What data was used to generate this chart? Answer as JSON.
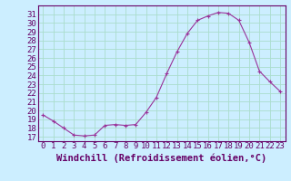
{
  "x": [
    0,
    1,
    2,
    3,
    4,
    5,
    6,
    7,
    8,
    9,
    10,
    11,
    12,
    13,
    14,
    15,
    16,
    17,
    18,
    19,
    20,
    21,
    22,
    23
  ],
  "y": [
    19.5,
    18.8,
    18.0,
    17.2,
    17.1,
    17.2,
    18.3,
    18.4,
    18.3,
    18.4,
    19.8,
    21.5,
    24.2,
    26.7,
    28.8,
    30.3,
    30.8,
    31.2,
    31.1,
    30.3,
    27.8,
    24.5,
    23.3,
    22.2
  ],
  "line_color": "#993399",
  "marker": "+",
  "marker_size": 3,
  "xlabel": "Windchill (Refroidissement éolien,°C)",
  "ylabel": "",
  "ylim": [
    16.5,
    32.0
  ],
  "xlim": [
    -0.5,
    23.5
  ],
  "yticks": [
    17,
    18,
    19,
    20,
    21,
    22,
    23,
    24,
    25,
    26,
    27,
    28,
    29,
    30,
    31
  ],
  "xticks": [
    0,
    1,
    2,
    3,
    4,
    5,
    6,
    7,
    8,
    9,
    10,
    11,
    12,
    13,
    14,
    15,
    16,
    17,
    18,
    19,
    20,
    21,
    22,
    23
  ],
  "bg_color": "#cceeff",
  "grid_color": "#aaddcc",
  "tick_color": "#660066",
  "label_color": "#660066",
  "font_size": 6.5,
  "xlabel_fontsize": 7.5
}
